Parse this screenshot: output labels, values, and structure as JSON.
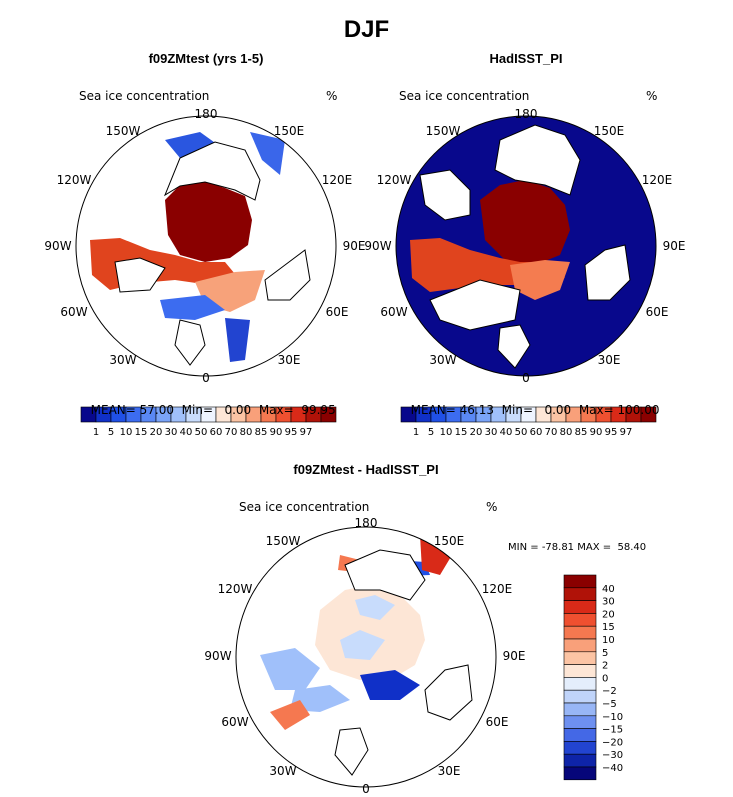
{
  "page_title": "DJF",
  "chart_data": [
    {
      "type": "polar-map",
      "panel": "left",
      "title": "f09ZMtest (yrs 1-5)",
      "variable": "Sea ice concentration",
      "units": "%",
      "lon_labels": [
        "180",
        "150E",
        "120E",
        "90E",
        "60E",
        "30E",
        "0",
        "30W",
        "60W",
        "90W",
        "120W",
        "150W"
      ],
      "stats": {
        "mean_label": "MEAN=",
        "mean": "57.00",
        "min_label": "Min=",
        "min": "0.00",
        "max_label": "Max=",
        "max": "99.95"
      },
      "colorbar_labels": [
        "1",
        "5",
        "10",
        "15",
        "20",
        "30",
        "40",
        "50",
        "60",
        "70",
        "80",
        "85",
        "90",
        "95",
        "97"
      ],
      "colorbar_colors": [
        "#08088c",
        "#1030c8",
        "#2050e6",
        "#3c6cf0",
        "#5a88f4",
        "#7aa4f8",
        "#a0c0fa",
        "#c8dcfc",
        "#eef4ff",
        "#fde6d6",
        "#fcc4a4",
        "#f9a07a",
        "#f57850",
        "#ef5030",
        "#d92a18",
        "#b01208",
        "#8a0000"
      ]
    },
    {
      "type": "polar-map",
      "panel": "right",
      "title": "HadISST_PI",
      "variable": "Sea ice concentration",
      "units": "%",
      "lon_labels": [
        "180",
        "150E",
        "120E",
        "90E",
        "60E",
        "30E",
        "0",
        "30W",
        "60W",
        "90W",
        "120W",
        "150W"
      ],
      "stats": {
        "mean_label": "MEAN=",
        "mean": "46.13",
        "min_label": "Min=",
        "min": "0.00",
        "max_label": "Max=",
        "max": "100.00"
      },
      "colorbar_labels": [
        "1",
        "5",
        "10",
        "15",
        "20",
        "30",
        "40",
        "50",
        "60",
        "70",
        "80",
        "85",
        "90",
        "95",
        "97"
      ]
    },
    {
      "type": "polar-map",
      "panel": "difference",
      "title": "f09ZMtest - HadISST_PI",
      "variable": "Sea ice concentration",
      "units": "%",
      "lon_labels": [
        "180",
        "150E",
        "120E",
        "90E",
        "60E",
        "30E",
        "0",
        "30W",
        "60W",
        "90W",
        "120W",
        "150W"
      ],
      "stats": {
        "min_label": "MIN =",
        "min": "-78.81",
        "max_label": "MAX =",
        "max": "58.40"
      },
      "colorbar_labels": [
        "40",
        "30",
        "20",
        "15",
        "10",
        "5",
        "2",
        "0",
        "−2",
        "−5",
        "−10",
        "−15",
        "−20",
        "−30",
        "−40"
      ],
      "colorbar_colors": [
        "#8a0000",
        "#b01208",
        "#d92a18",
        "#ef5030",
        "#f57850",
        "#f9a07a",
        "#fcc4a4",
        "#fde6d6",
        "#e4eefc",
        "#c0d4fa",
        "#98b6f6",
        "#6e90f0",
        "#4468e6",
        "#2244d0",
        "#0e24a8",
        "#06067a"
      ]
    }
  ]
}
